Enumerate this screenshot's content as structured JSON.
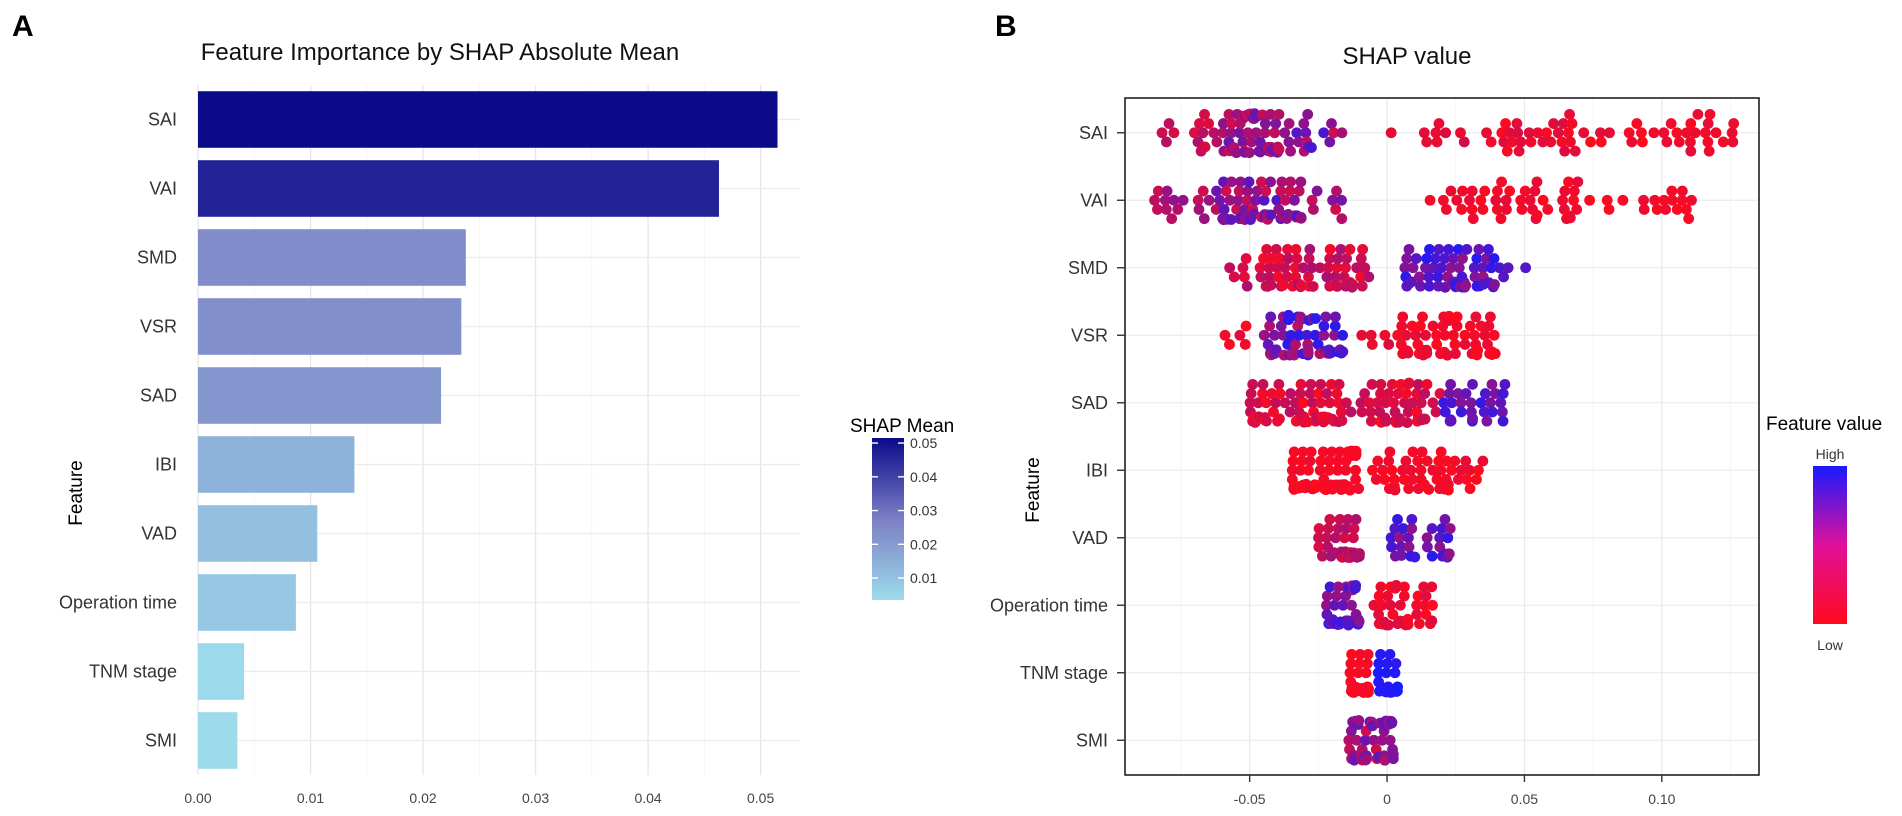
{
  "panels": {
    "a": "A",
    "b": "B"
  },
  "chart_data": [
    {
      "type": "bar",
      "orientation": "horizontal",
      "title": "Feature Importance by SHAP Absolute Mean",
      "xlabel": "",
      "ylabel": "Feature",
      "categories": [
        "SAI",
        "VAI",
        "SMD",
        "VSR",
        "SAD",
        "IBI",
        "VAD",
        "Operation time",
        "TNM stage",
        "SMI"
      ],
      "values": [
        0.0515,
        0.0463,
        0.0238,
        0.0234,
        0.0216,
        0.0139,
        0.0106,
        0.0087,
        0.0041,
        0.0035
      ],
      "xlim": [
        0,
        0.0535
      ],
      "xticks": [
        0,
        0.01,
        0.02,
        0.03,
        0.04,
        0.05
      ],
      "xtick_labels": [
        "0.00",
        "0.01",
        "0.02",
        "0.03",
        "0.04",
        "0.05"
      ],
      "legend": {
        "title": "SHAP Mean",
        "range": [
          0.0035,
          0.0515
        ],
        "ticks": [
          0.01,
          0.02,
          0.03,
          0.04,
          0.05
        ],
        "labels": [
          "0.01",
          "0.02",
          "0.03",
          "0.04",
          "0.05"
        ],
        "colors": {
          "low": "#9ddbeb",
          "mid": "#7b7fc4",
          "high": "#0a0a8a"
        }
      }
    },
    {
      "type": "scatter",
      "subtype": "beeswarm",
      "title": "SHAP value",
      "xlabel": "",
      "ylabel": "Feature",
      "categories": [
        "SAI",
        "VAI",
        "SMD",
        "VSR",
        "SAD",
        "IBI",
        "VAD",
        "Operation  time",
        "TNM stage",
        "SMI"
      ],
      "xlim": [
        -0.095,
        0.135
      ],
      "xticks": [
        -0.05,
        0,
        0.05,
        0.1
      ],
      "xtick_labels": [
        "-0.05",
        "0",
        "0.05",
        "0.10"
      ],
      "series": [
        {
          "feature": "SAI",
          "segments": [
            {
              "from": -0.085,
              "to": -0.06,
              "n": 14,
              "fmin": 0.1,
              "fmax": 0.35
            },
            {
              "from": -0.06,
              "to": -0.035,
              "n": 70,
              "fmin": 0.15,
              "fmax": 0.7
            },
            {
              "from": -0.035,
              "to": -0.015,
              "n": 14,
              "fmin": 0.2,
              "fmax": 0.8
            },
            {
              "from": 0.0,
              "to": 0.03,
              "n": 9,
              "fmin": 0.05,
              "fmax": 0.2
            },
            {
              "from": 0.035,
              "to": 0.075,
              "n": 30,
              "fmin": 0.0,
              "fmax": 0.15
            },
            {
              "from": 0.075,
              "to": 0.127,
              "n": 30,
              "fmin": 0.0,
              "fmax": 0.12
            }
          ]
        },
        {
          "feature": "VAI",
          "segments": [
            {
              "from": -0.085,
              "to": -0.065,
              "n": 14,
              "fmin": 0.2,
              "fmax": 0.5
            },
            {
              "from": -0.065,
              "to": -0.03,
              "n": 70,
              "fmin": 0.2,
              "fmax": 0.8
            },
            {
              "from": -0.03,
              "to": -0.015,
              "n": 8,
              "fmin": 0.2,
              "fmax": 0.6
            },
            {
              "from": 0.015,
              "to": 0.07,
              "n": 45,
              "fmin": 0.0,
              "fmax": 0.12
            },
            {
              "from": 0.07,
              "to": 0.112,
              "n": 18,
              "fmin": 0.0,
              "fmax": 0.1
            }
          ]
        },
        {
          "feature": "SMD",
          "segments": [
            {
              "from": -0.06,
              "to": -0.045,
              "n": 8,
              "fmin": 0.1,
              "fmax": 0.4
            },
            {
              "from": -0.045,
              "to": -0.005,
              "n": 65,
              "fmin": 0.05,
              "fmax": 0.4
            },
            {
              "from": 0.005,
              "to": 0.04,
              "n": 60,
              "fmin": 0.45,
              "fmax": 0.95
            },
            {
              "from": 0.04,
              "to": 0.051,
              "n": 4,
              "fmin": 0.7,
              "fmax": 0.8
            }
          ]
        },
        {
          "feature": "VSR",
          "segments": [
            {
              "from": -0.06,
              "to": -0.05,
              "n": 5,
              "fmin": 0.0,
              "fmax": 0.2
            },
            {
              "from": -0.045,
              "to": -0.015,
              "n": 60,
              "fmin": 0.3,
              "fmax": 0.95
            },
            {
              "from": -0.01,
              "to": 0.005,
              "n": 6,
              "fmin": 0.0,
              "fmax": 0.2
            },
            {
              "from": 0.005,
              "to": 0.04,
              "n": 60,
              "fmin": 0.0,
              "fmax": 0.12
            }
          ]
        },
        {
          "feature": "SAD",
          "segments": [
            {
              "from": -0.05,
              "to": 0.02,
              "n": 120,
              "fmin": 0.0,
              "fmax": 0.3
            },
            {
              "from": 0.02,
              "to": 0.043,
              "n": 30,
              "fmin": 0.5,
              "fmax": 0.9
            }
          ]
        },
        {
          "feature": "IBI",
          "segments": [
            {
              "from": -0.035,
              "to": -0.01,
              "n": 90,
              "fmin": 0.0,
              "fmax": 0.08
            },
            {
              "from": -0.01,
              "to": 0.035,
              "n": 50,
              "fmin": 0.0,
              "fmax": 0.1
            }
          ]
        },
        {
          "feature": "VAD",
          "segments": [
            {
              "from": -0.025,
              "to": -0.01,
              "n": 45,
              "fmin": 0.15,
              "fmax": 0.5
            },
            {
              "from": 0.0,
              "to": 0.023,
              "n": 30,
              "fmin": 0.45,
              "fmax": 0.95
            }
          ]
        },
        {
          "feature": "Operation  time",
          "segments": [
            {
              "from": -0.023,
              "to": -0.01,
              "n": 40,
              "fmin": 0.45,
              "fmax": 0.95
            },
            {
              "from": -0.005,
              "to": 0.017,
              "n": 40,
              "fmin": 0.0,
              "fmax": 0.15
            }
          ]
        },
        {
          "feature": "TNM stage",
          "segments": [
            {
              "from": -0.014,
              "to": -0.006,
              "n": 45,
              "fmin": 0.0,
              "fmax": 0.05
            },
            {
              "from": -0.004,
              "to": 0.004,
              "n": 30,
              "fmin": 0.92,
              "fmax": 1.0
            }
          ]
        },
        {
          "feature": "SMI",
          "segments": [
            {
              "from": -0.014,
              "to": 0.003,
              "n": 55,
              "fmin": 0.2,
              "fmax": 0.7
            }
          ]
        }
      ],
      "legend": {
        "title": "Feature value",
        "high": "High",
        "low": "Low",
        "colors": {
          "low": "#ff0a1e",
          "high": "#1a1aff"
        }
      }
    }
  ]
}
